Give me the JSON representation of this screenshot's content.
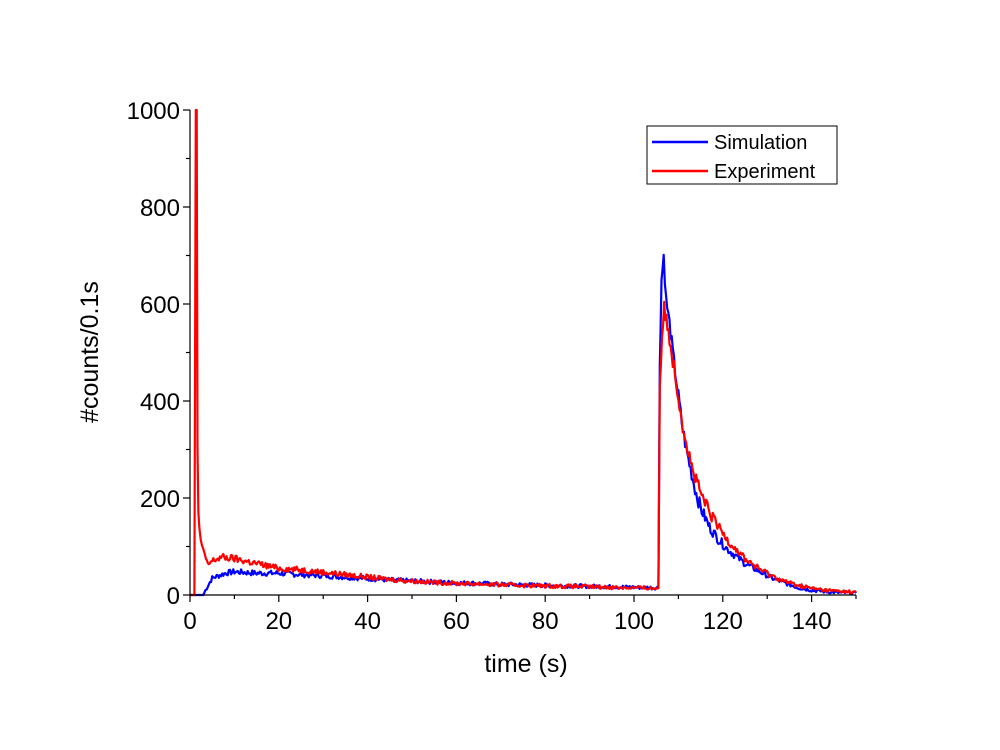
{
  "chart_data": {
    "type": "line",
    "title": "",
    "xlabel": "time (s)",
    "ylabel": "#counts/0.1s",
    "xlim": [
      0,
      150
    ],
    "ylim": [
      0,
      1000
    ],
    "x_ticks": [
      0,
      20,
      40,
      60,
      80,
      100,
      120,
      140
    ],
    "y_ticks": [
      0,
      200,
      400,
      600,
      800,
      1000
    ],
    "x_tick_labels": [
      "0",
      "20",
      "40",
      "60",
      "80",
      "100",
      "120",
      "140"
    ],
    "y_tick_labels": [
      "0",
      "200",
      "400",
      "600",
      "800",
      "1000"
    ],
    "grid": false,
    "legend_position": "top-right",
    "series": [
      {
        "name": "Simulation",
        "color": "#0000ff",
        "x": [
          0,
          3,
          3.5,
          5,
          8,
          10,
          15,
          20,
          25,
          30,
          35,
          40,
          45,
          50,
          55,
          60,
          65,
          70,
          75,
          80,
          85,
          90,
          95,
          100,
          104,
          105.5,
          105.8,
          106.2,
          106.7,
          107.2,
          108,
          109,
          110,
          111,
          112,
          113,
          114,
          115,
          117,
          119,
          121,
          123,
          125,
          128,
          131,
          134,
          137,
          140,
          143,
          146,
          150
        ],
        "y": [
          0,
          0,
          10,
          35,
          45,
          48,
          45,
          45,
          42,
          40,
          37,
          34,
          31,
          29,
          27,
          25,
          24,
          22,
          21,
          20,
          19,
          18,
          17,
          16,
          15,
          15,
          480,
          650,
          700,
          610,
          560,
          480,
          410,
          340,
          290,
          250,
          210,
          180,
          140,
          115,
          95,
          80,
          65,
          50,
          35,
          25,
          15,
          10,
          7,
          5,
          4
        ]
      },
      {
        "name": "Experiment",
        "color": "#ff0000",
        "x": [
          0,
          1,
          1.3,
          1.5,
          1.7,
          1.9,
          2.1,
          2.4,
          3,
          3.3,
          3.6,
          4,
          5,
          7,
          10,
          15,
          20,
          25,
          30,
          35,
          40,
          45,
          50,
          55,
          60,
          65,
          70,
          75,
          80,
          85,
          90,
          95,
          100,
          104,
          105.5,
          105.8,
          106.3,
          106.8,
          107.3,
          108,
          109,
          110,
          111,
          112,
          113,
          114,
          115,
          117,
          119,
          121,
          123,
          125,
          128,
          131,
          134,
          137,
          140,
          143,
          146,
          150
        ],
        "y": [
          0,
          0,
          1000,
          1000,
          300,
          170,
          140,
          110,
          95,
          85,
          70,
          62,
          70,
          78,
          75,
          65,
          55,
          52,
          47,
          42,
          37,
          32,
          29,
          26,
          24,
          23,
          21,
          20,
          19,
          18,
          17,
          16,
          15,
          14,
          14,
          430,
          540,
          590,
          565,
          530,
          470,
          410,
          350,
          305,
          265,
          235,
          210,
          170,
          140,
          115,
          95,
          75,
          55,
          40,
          28,
          20,
          14,
          10,
          8,
          6
        ]
      }
    ]
  }
}
